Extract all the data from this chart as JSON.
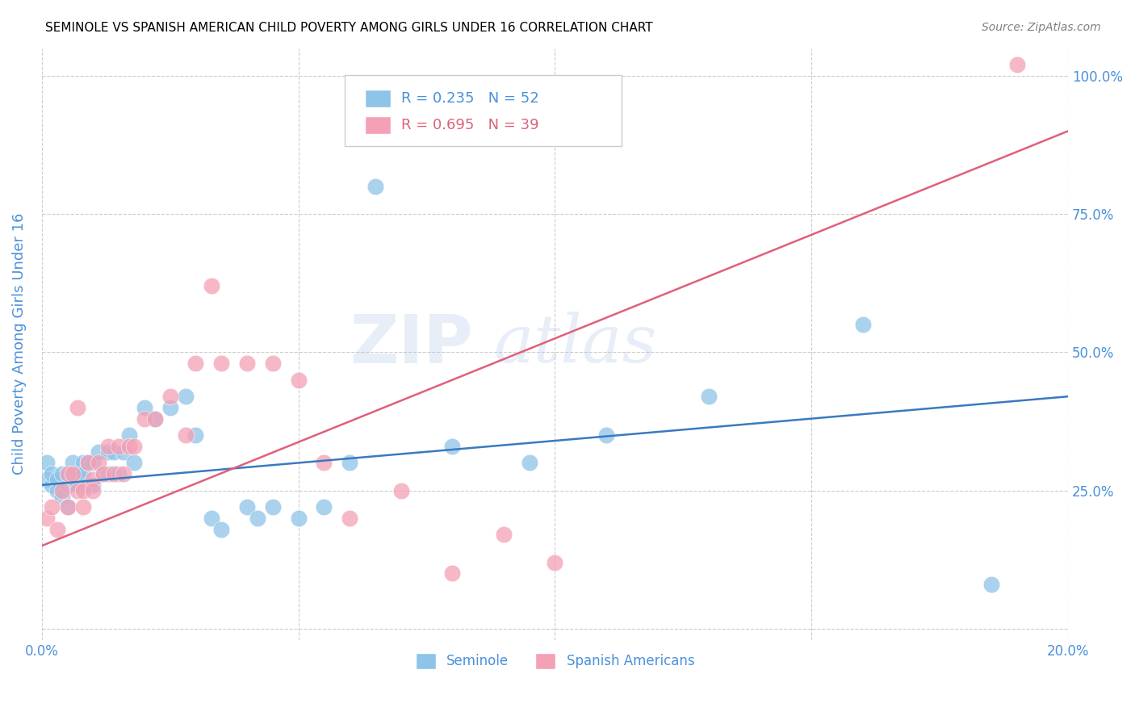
{
  "title": "SEMINOLE VS SPANISH AMERICAN CHILD POVERTY AMONG GIRLS UNDER 16 CORRELATION CHART",
  "source": "Source: ZipAtlas.com",
  "ylabel": "Child Poverty Among Girls Under 16",
  "seminole_R": 0.235,
  "seminole_N": 52,
  "spanish_R": 0.695,
  "spanish_N": 39,
  "seminole_color": "#8ec4e8",
  "spanish_color": "#f4a0b5",
  "seminole_line_color": "#3a7abf",
  "spanish_line_color": "#e0607a",
  "axis_label_color": "#4a90d9",
  "background_color": "#ffffff",
  "grid_color": "#cccccc",
  "watermark": "ZIPatlas",
  "xlim": [
    0.0,
    0.2
  ],
  "ylim": [
    -0.02,
    1.05
  ],
  "x_ticks": [
    0.0,
    0.05,
    0.1,
    0.15,
    0.2
  ],
  "x_tick_labels": [
    "0.0%",
    "",
    "",
    "",
    "20.0%"
  ],
  "y_ticks": [
    0.0,
    0.25,
    0.5,
    0.75,
    1.0
  ],
  "y_tick_labels": [
    "",
    "25.0%",
    "50.0%",
    "75.0%",
    "100.0%"
  ],
  "seminole_x": [
    0.001,
    0.001,
    0.002,
    0.002,
    0.003,
    0.003,
    0.004,
    0.004,
    0.005,
    0.005,
    0.005,
    0.006,
    0.006,
    0.007,
    0.007,
    0.007,
    0.008,
    0.008,
    0.008,
    0.009,
    0.009,
    0.01,
    0.01,
    0.011,
    0.012,
    0.013,
    0.013,
    0.014,
    0.015,
    0.016,
    0.017,
    0.018,
    0.02,
    0.022,
    0.025,
    0.028,
    0.03,
    0.033,
    0.035,
    0.04,
    0.042,
    0.045,
    0.05,
    0.055,
    0.06,
    0.065,
    0.08,
    0.095,
    0.11,
    0.13,
    0.16,
    0.185
  ],
  "seminole_y": [
    0.27,
    0.3,
    0.26,
    0.28,
    0.27,
    0.25,
    0.24,
    0.28,
    0.26,
    0.22,
    0.28,
    0.27,
    0.3,
    0.26,
    0.28,
    0.28,
    0.26,
    0.3,
    0.28,
    0.26,
    0.3,
    0.26,
    0.3,
    0.32,
    0.28,
    0.32,
    0.28,
    0.32,
    0.28,
    0.32,
    0.35,
    0.3,
    0.4,
    0.38,
    0.4,
    0.42,
    0.35,
    0.2,
    0.18,
    0.22,
    0.2,
    0.22,
    0.2,
    0.22,
    0.3,
    0.8,
    0.33,
    0.3,
    0.35,
    0.42,
    0.55,
    0.08
  ],
  "spanish_x": [
    0.001,
    0.002,
    0.003,
    0.004,
    0.005,
    0.005,
    0.006,
    0.007,
    0.007,
    0.008,
    0.008,
    0.009,
    0.01,
    0.01,
    0.011,
    0.012,
    0.013,
    0.014,
    0.015,
    0.016,
    0.017,
    0.018,
    0.02,
    0.022,
    0.025,
    0.028,
    0.03,
    0.033,
    0.035,
    0.04,
    0.045,
    0.05,
    0.055,
    0.06,
    0.07,
    0.08,
    0.09,
    0.1,
    0.19
  ],
  "spanish_y": [
    0.2,
    0.22,
    0.18,
    0.25,
    0.28,
    0.22,
    0.28,
    0.25,
    0.4,
    0.25,
    0.22,
    0.3,
    0.27,
    0.25,
    0.3,
    0.28,
    0.33,
    0.28,
    0.33,
    0.28,
    0.33,
    0.33,
    0.38,
    0.38,
    0.42,
    0.35,
    0.48,
    0.62,
    0.48,
    0.48,
    0.48,
    0.45,
    0.3,
    0.2,
    0.25,
    0.1,
    0.17,
    0.12,
    1.02
  ],
  "sem_line_x0": 0.0,
  "sem_line_y0": 0.26,
  "sem_line_x1": 0.2,
  "sem_line_y1": 0.42,
  "spa_line_x0": 0.0,
  "spa_line_y0": 0.15,
  "spa_line_x1": 0.2,
  "spa_line_y1": 0.9
}
